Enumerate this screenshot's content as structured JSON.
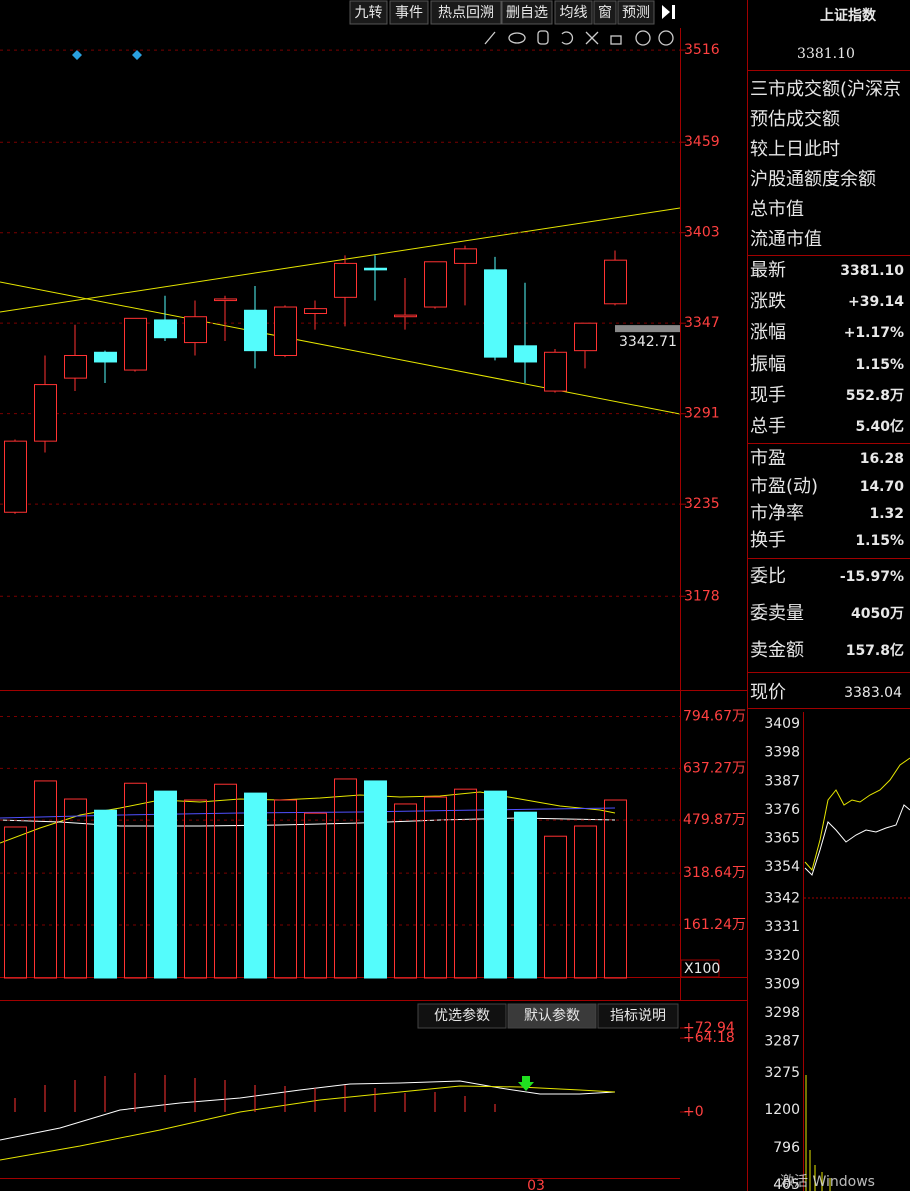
{
  "toolbar": [
    "九转",
    "事件",
    "热点回溯",
    "删自选",
    "均线",
    "窗",
    "预测"
  ],
  "chart_data": [
    {
      "type": "candlestick",
      "up_color": "#ff3232",
      "down_color": "#54fcfc",
      "grid": true,
      "ylim": [
        3120,
        3547
      ],
      "yticks": [
        3516,
        3459,
        3403,
        3347,
        3291,
        3235,
        3178
      ],
      "open": [
        3230,
        3274,
        3313,
        3329,
        3318,
        3349,
        3335,
        3361,
        3355,
        3327,
        3353,
        3363,
        3381,
        3351,
        3357,
        3384,
        3380,
        3333,
        3305,
        3330,
        3359
      ],
      "high": [
        3275,
        3327,
        3346,
        3330,
        3350,
        3364,
        3361,
        3364,
        3370,
        3358,
        3361,
        3389,
        3389,
        3375,
        3385,
        3395,
        3388,
        3372,
        3331,
        3347,
        3392
      ],
      "low": [
        3229,
        3267,
        3305,
        3310,
        3317,
        3336,
        3327,
        3336,
        3319,
        3326,
        3343,
        3345,
        3361,
        3343,
        3356,
        3358,
        3324,
        3310,
        3304,
        3319,
        3358
      ],
      "close": [
        3274,
        3309,
        3327,
        3323,
        3350,
        3338,
        3351,
        3362,
        3330,
        3357,
        3356,
        3384,
        3380,
        3352,
        3385,
        3393,
        3326,
        3323,
        3329,
        3347,
        3386
      ],
      "price_marker": 3342.71
    },
    {
      "type": "bar",
      "unit_label": "X100",
      "ylim": [
        0,
        845
      ],
      "yticks": [
        {
          "value": 794.67,
          "label": "794.67万"
        },
        {
          "value": 637.27,
          "label": "637.27万"
        },
        {
          "value": 479.87,
          "label": "479.87万"
        },
        {
          "value": 318.64,
          "label": "318.64万"
        },
        {
          "value": 161.24,
          "label": "161.24万"
        }
      ],
      "values": [
        459,
        599,
        544,
        510,
        592,
        568,
        541,
        589,
        562,
        541,
        501,
        605,
        599,
        529,
        550,
        574,
        568,
        504,
        431,
        462,
        541
      ]
    },
    {
      "type": "indicator",
      "tabs": [
        "优选参数",
        "默认参数",
        "指标说明"
      ],
      "ylim": [
        -68.6,
        97.2
      ],
      "yticks": [
        {
          "value": 72.94,
          "label": "+72.94"
        },
        {
          "value": 64.18,
          "label": "+64.18"
        },
        {
          "value": 0,
          "label": "+0"
        }
      ],
      "categories": [
        null,
        null,
        null,
        null,
        null,
        null,
        null,
        null,
        null,
        null,
        null,
        null,
        null,
        null,
        null,
        null,
        null,
        "03",
        null,
        null,
        null
      ]
    }
  ],
  "panel": {
    "title": "上证指数",
    "price": "3381.10",
    "list": [
      "三市成交额(沪深京",
      "预估成交额",
      "较上日此时",
      "沪股通额度余额",
      "总市值",
      "流通市值"
    ],
    "rows": [
      {
        "label": "最新",
        "value": "3381.10",
        "color": "#ff3232"
      },
      {
        "label": "涨跌",
        "value": "+39.14",
        "color": "#ff3232"
      },
      {
        "label": "涨幅",
        "value": "+1.17%",
        "color": "#ff3232"
      },
      {
        "label": "振幅",
        "value": "1.15%",
        "color": "#54fcfc"
      },
      {
        "label": "现手",
        "value": "552.8万",
        "color": "#54fcfc"
      },
      {
        "label": "总手",
        "value": "5.40亿",
        "color": "#54fcfc"
      },
      {
        "label": "市盈",
        "value": "16.28",
        "color": "#e6e6e6"
      },
      {
        "label": "市盈(动)",
        "value": "14.70",
        "color": "#e6e6e6"
      },
      {
        "label": "市净率",
        "value": "1.32",
        "color": "#e6e6e6"
      },
      {
        "label": "换手",
        "value": "1.15%",
        "color": "#54fcfc"
      },
      {
        "label": "委比",
        "value": "-15.97%",
        "color": "#00e000"
      },
      {
        "label": "委卖量",
        "value": "4050万",
        "color": "#54fcfc"
      },
      {
        "label": "卖金额",
        "value": "157.8亿",
        "color": "#54fcfc"
      }
    ],
    "now_label": "现价",
    "now_value": "3383.04",
    "mini_ticks": [
      3409,
      3398,
      3387,
      3376,
      3365,
      3354,
      3342,
      3331,
      3320,
      3309,
      3298,
      3287,
      3275
    ],
    "mini_volume_ticks": [
      1200,
      796,
      405
    ]
  },
  "watermark": "激活 Windows"
}
